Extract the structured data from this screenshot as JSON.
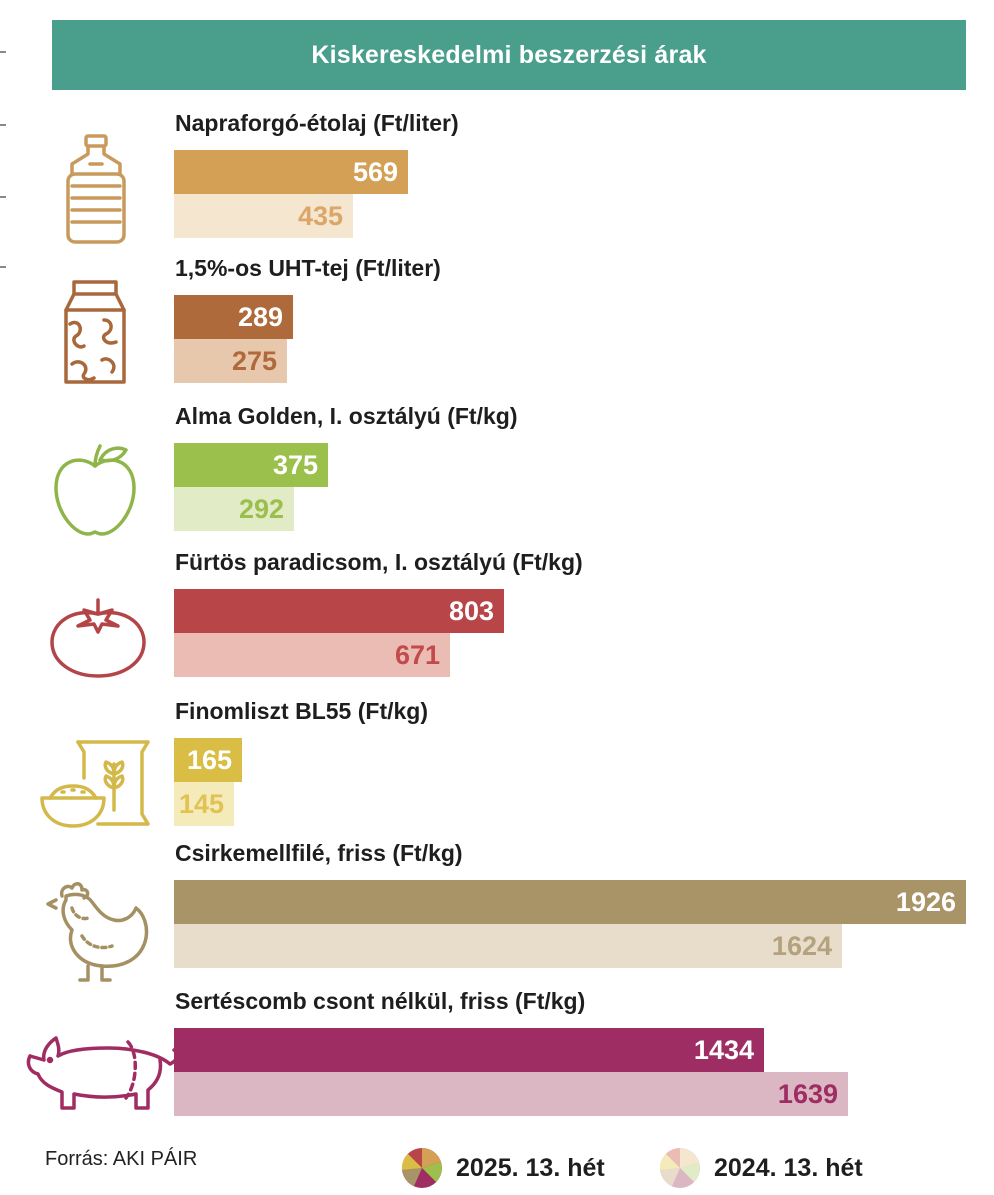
{
  "header": {
    "title": "Kiskereskedelmi beszerzési árak"
  },
  "chart_data": {
    "type": "bar",
    "orientation": "horizontal",
    "title": "Kiskereskedelmi beszerzési árak",
    "categories": [
      "Napraforgó-étolaj (Ft/liter)",
      "1,5%-os UHT-tej (Ft/liter)",
      "Alma Golden, I. osztályú (Ft/kg)",
      "Fürtös paradicsom, I. osztályú (Ft/kg)",
      "Finomliszt BL55 (Ft/kg)",
      "Csirkemellfilé, friss (Ft/kg)",
      "Sertéscomb csont nélkül, friss (Ft/kg)"
    ],
    "series": [
      {
        "name": "2025. 13. hét",
        "values": [
          569,
          289,
          375,
          803,
          165,
          1926,
          1434
        ]
      },
      {
        "name": "2024. 13. hét",
        "values": [
          435,
          275,
          292,
          671,
          145,
          1624,
          1639
        ]
      }
    ],
    "colors": {
      "current": [
        "#d3a055",
        "#ae6a3a",
        "#9cc04c",
        "#b84548",
        "#d9bd45",
        "#a89466",
        "#9e2d63"
      ],
      "previous": [
        "#f4e6cf",
        "#e7c8ad",
        "#e1ebc6",
        "#ebbcb3",
        "#f5eab9",
        "#e7ddca",
        "#dbb6c3"
      ],
      "previous_text": [
        "#dca668",
        "#b0693a",
        "#9cbf4c",
        "#c14a4e",
        "#e0c353",
        "#b4a27e",
        "#9e2d63"
      ]
    },
    "icons": [
      "oil-bottle-icon",
      "milk-carton-icon",
      "apple-icon",
      "tomato-icon",
      "flour-sack-icon",
      "chicken-icon",
      "pig-icon"
    ]
  },
  "footer": {
    "source": "Forrás: AKI PÁIR"
  },
  "legend": {
    "current": "2025. 13. hét",
    "previous": "2024. 13. hét"
  }
}
